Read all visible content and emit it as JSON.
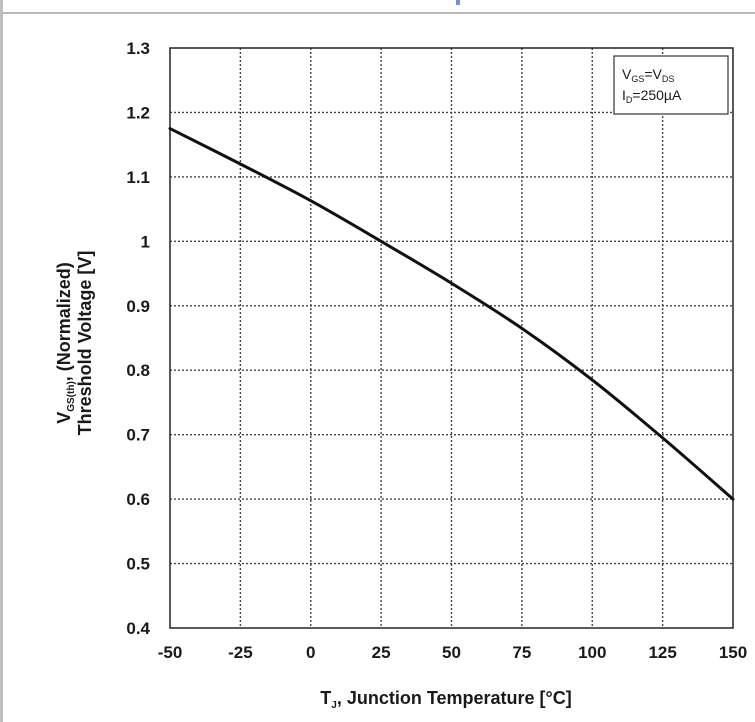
{
  "colors": {
    "background": "#ffffff",
    "line": "#111111",
    "grid": "#444444",
    "frame": "#b9b9b9"
  },
  "chart_data": {
    "type": "line",
    "title": "",
    "xlabel": {
      "main": "T",
      "sub": "J",
      "rest": ", Junction Temperature [°C]"
    },
    "ylabel": {
      "line1_main": "V",
      "line1_sub": "GS(th)",
      "line1_rest": ", (Normalized)",
      "line2": "Threshold Voltage [V]"
    },
    "xlim": [
      -50,
      150
    ],
    "ylim": [
      0.4,
      1.3
    ],
    "xticks": [
      -50,
      -25,
      0,
      25,
      50,
      75,
      100,
      125,
      150
    ],
    "yticks": [
      0.4,
      0.5,
      0.6,
      0.7,
      0.8,
      0.9,
      1,
      1.1,
      1.2,
      1.3
    ],
    "xtick_labels": [
      "-50",
      "-25",
      "0",
      "25",
      "50",
      "75",
      "100",
      "125",
      "150"
    ],
    "ytick_labels": [
      "0.4",
      "0.5",
      "0.6",
      "0.7",
      "0.8",
      "0.9",
      "1",
      "1.1",
      "1.2",
      "1.3"
    ],
    "grid": true,
    "legend_placement": "top-right",
    "legend": {
      "line1": {
        "a": "V",
        "a_sub": "GS",
        "eq": "=V",
        "b_sub": "DS"
      },
      "line2": {
        "a": "I",
        "a_sub": "D",
        "rest": "=250µA"
      }
    },
    "series": [
      {
        "x": [
          -50,
          -25,
          0,
          25,
          50,
          75,
          100,
          125,
          150
        ],
        "y": [
          1.175,
          1.12,
          1.063,
          1.0,
          0.935,
          0.865,
          0.785,
          0.695,
          0.6
        ]
      }
    ]
  }
}
